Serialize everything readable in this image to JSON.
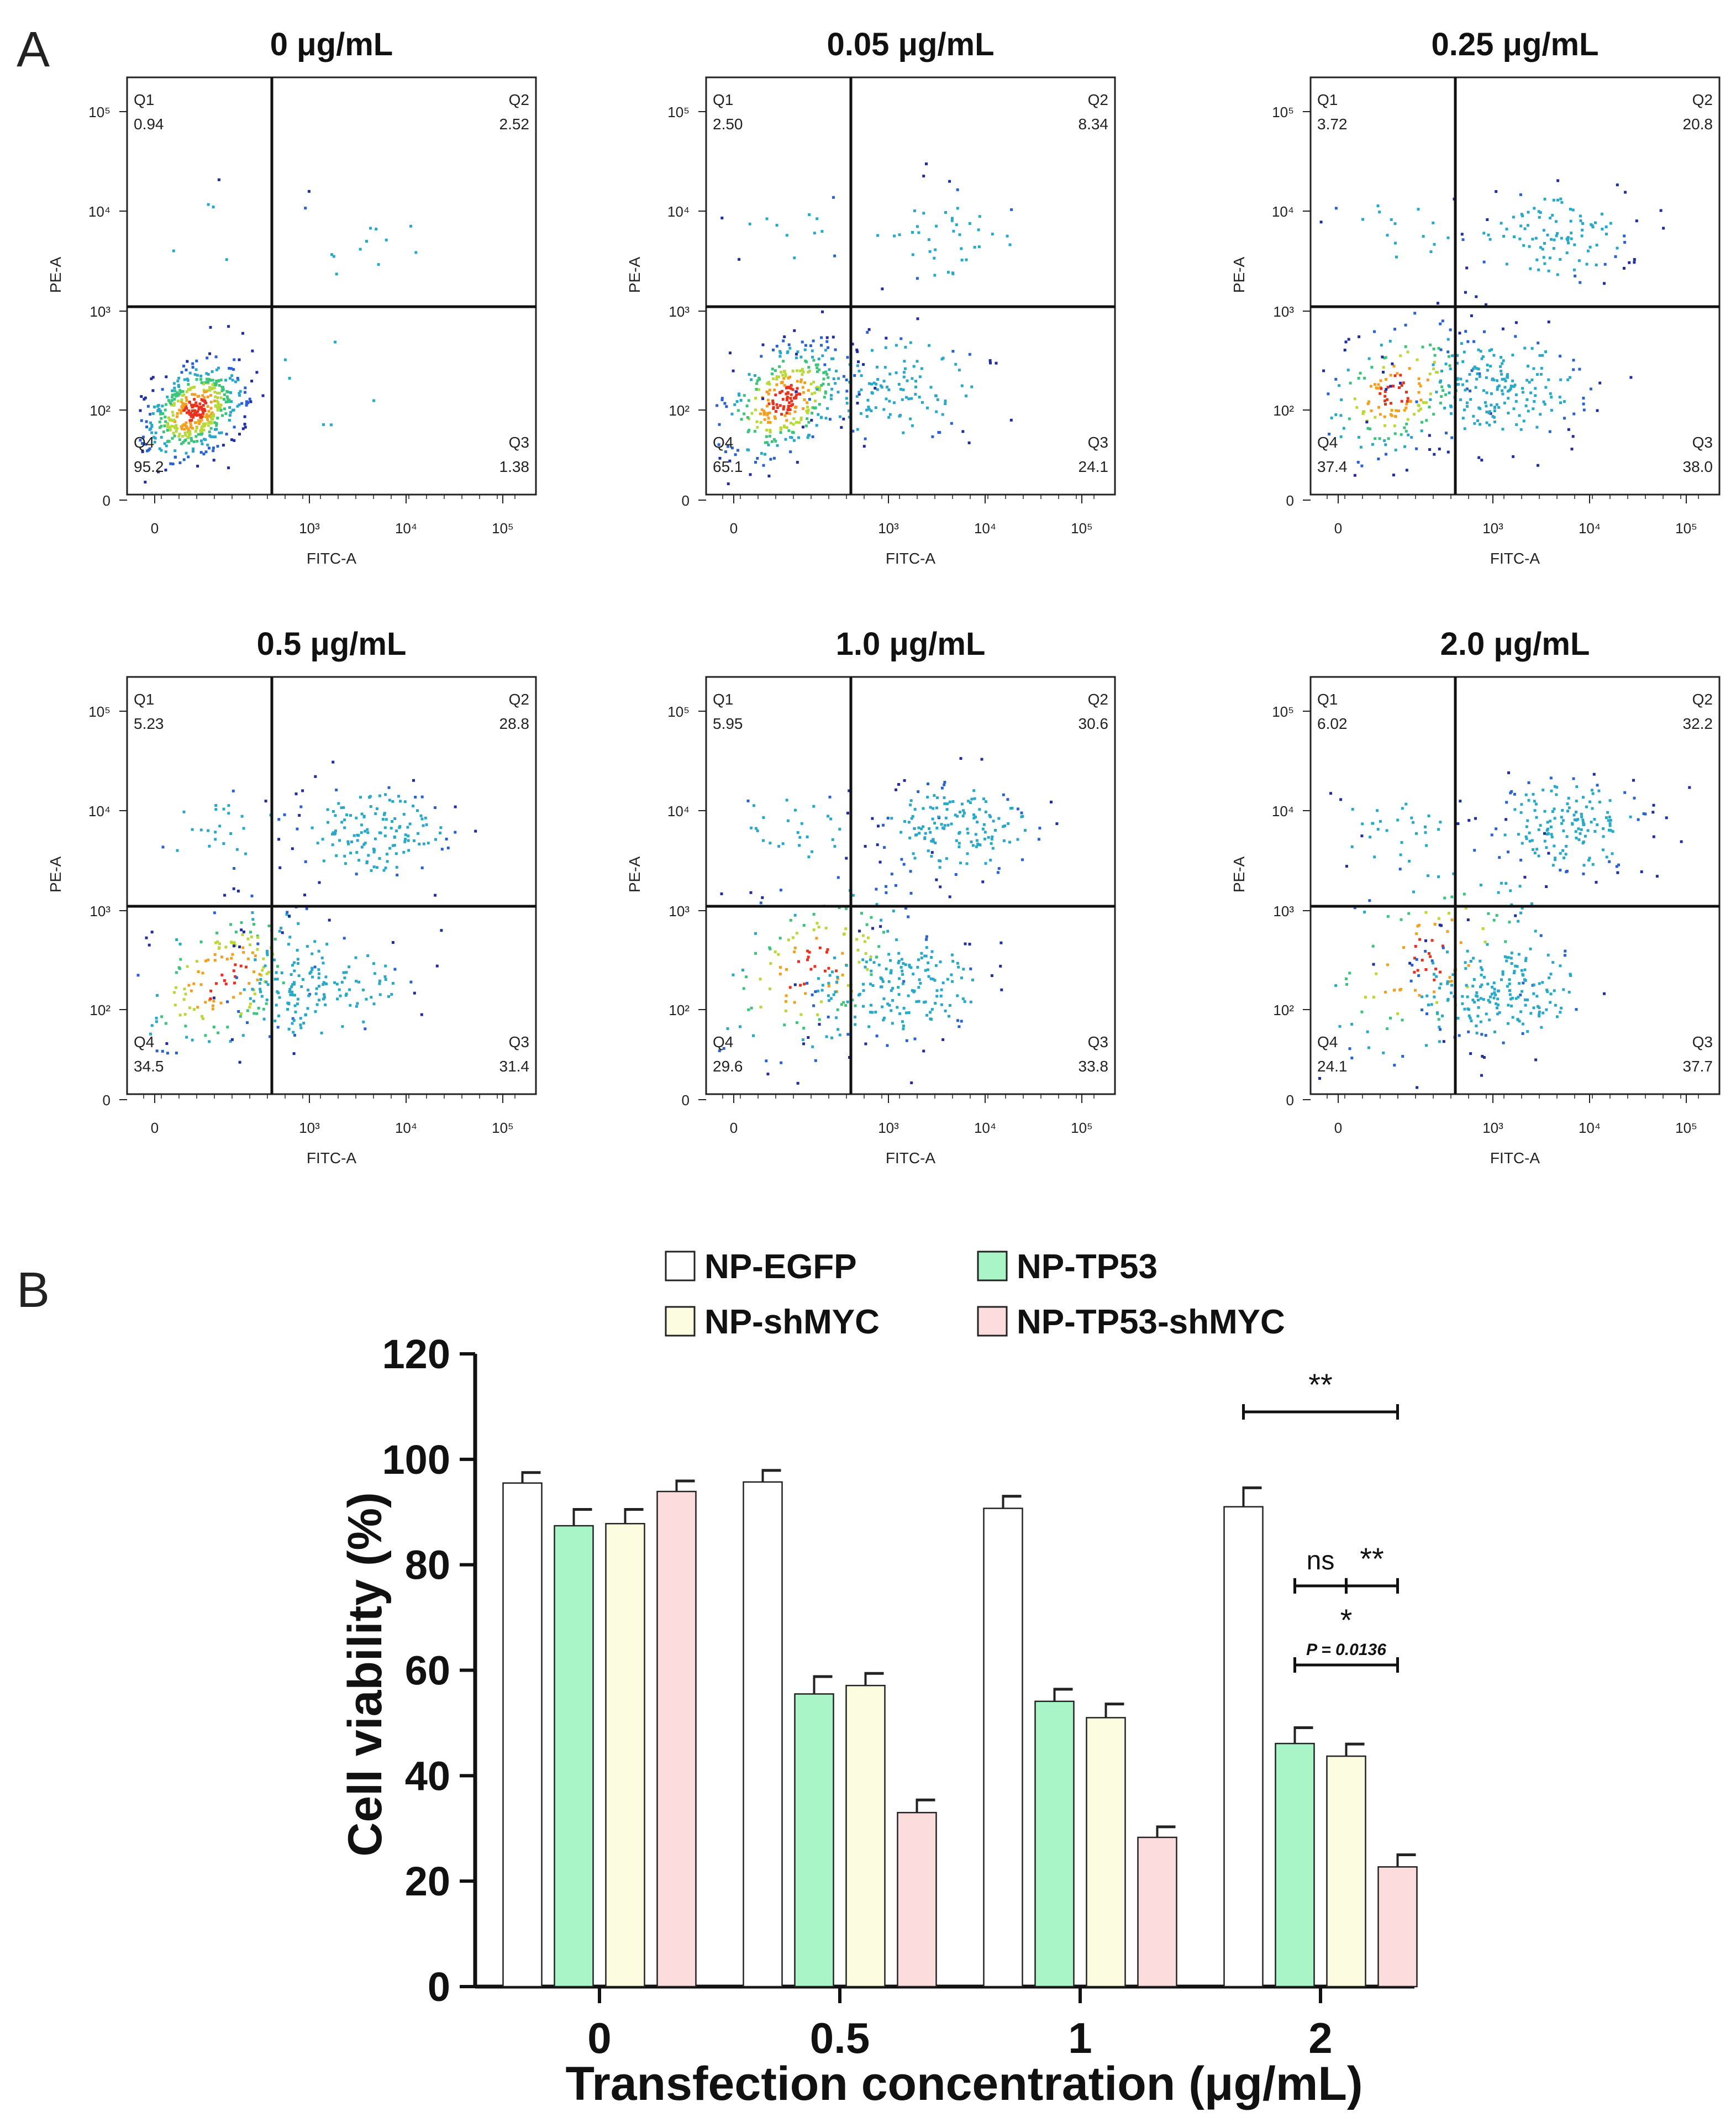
{
  "panel_labels": {
    "a": "A",
    "b": "B"
  },
  "colors": {
    "NP-EGFP": "#ffffff",
    "NP-TP53": "#aaf5c8",
    "NP-shMYC": "#fcfde0",
    "NP-TP53-shMYC": "#fcdcdc"
  },
  "chart_data": [
    {
      "type": "scatter",
      "title": "0 μg/mL",
      "xlabel": "FITC-A",
      "ylabel": "PE-A",
      "x_ticks": [
        "0",
        "10³",
        "10⁴",
        "10⁵"
      ],
      "y_ticks": [
        "0",
        "10²",
        "10³",
        "10⁴",
        "10⁵"
      ],
      "quadrants": [
        {
          "name": "Q1",
          "value": "0.94"
        },
        {
          "name": "Q2",
          "value": "2.52"
        },
        {
          "name": "Q3",
          "value": "1.38"
        },
        {
          "name": "Q4",
          "value": "95.2"
        }
      ]
    },
    {
      "type": "scatter",
      "title": "0.05 μg/mL",
      "xlabel": "FITC-A",
      "ylabel": "PE-A",
      "x_ticks": [
        "0",
        "10³",
        "10⁴",
        "10⁵"
      ],
      "y_ticks": [
        "0",
        "10²",
        "10³",
        "10⁴",
        "10⁵"
      ],
      "quadrants": [
        {
          "name": "Q1",
          "value": "2.50"
        },
        {
          "name": "Q2",
          "value": "8.34"
        },
        {
          "name": "Q3",
          "value": "24.1"
        },
        {
          "name": "Q4",
          "value": "65.1"
        }
      ]
    },
    {
      "type": "scatter",
      "title": "0.25 μg/mL",
      "xlabel": "FITC-A",
      "ylabel": "PE-A",
      "x_ticks": [
        "0",
        "10³",
        "10⁴",
        "10⁵"
      ],
      "y_ticks": [
        "0",
        "10²",
        "10³",
        "10⁴",
        "10⁵"
      ],
      "quadrants": [
        {
          "name": "Q1",
          "value": "3.72"
        },
        {
          "name": "Q2",
          "value": "20.8"
        },
        {
          "name": "Q3",
          "value": "38.0"
        },
        {
          "name": "Q4",
          "value": "37.4"
        }
      ]
    },
    {
      "type": "scatter",
      "title": "0.5 μg/mL",
      "xlabel": "FITC-A",
      "ylabel": "PE-A",
      "x_ticks": [
        "0",
        "10³",
        "10⁴",
        "10⁵"
      ],
      "y_ticks": [
        "0",
        "10²",
        "10³",
        "10⁴",
        "10⁵"
      ],
      "quadrants": [
        {
          "name": "Q1",
          "value": "5.23"
        },
        {
          "name": "Q2",
          "value": "28.8"
        },
        {
          "name": "Q3",
          "value": "31.4"
        },
        {
          "name": "Q4",
          "value": "34.5"
        }
      ]
    },
    {
      "type": "scatter",
      "title": "1.0 μg/mL",
      "xlabel": "FITC-A",
      "ylabel": "PE-A",
      "x_ticks": [
        "0",
        "10³",
        "10⁴",
        "10⁵"
      ],
      "y_ticks": [
        "0",
        "10²",
        "10³",
        "10⁴",
        "10⁵"
      ],
      "quadrants": [
        {
          "name": "Q1",
          "value": "5.95"
        },
        {
          "name": "Q2",
          "value": "30.6"
        },
        {
          "name": "Q3",
          "value": "33.8"
        },
        {
          "name": "Q4",
          "value": "29.6"
        }
      ]
    },
    {
      "type": "scatter",
      "title": "2.0 μg/mL",
      "xlabel": "FITC-A",
      "ylabel": "PE-A",
      "x_ticks": [
        "0",
        "10³",
        "10⁴",
        "10⁵"
      ],
      "y_ticks": [
        "0",
        "10²",
        "10³",
        "10⁴",
        "10⁵"
      ],
      "quadrants": [
        {
          "name": "Q1",
          "value": "6.02"
        },
        {
          "name": "Q2",
          "value": "32.2"
        },
        {
          "name": "Q3",
          "value": "37.7"
        },
        {
          "name": "Q4",
          "value": "24.1"
        }
      ]
    },
    {
      "type": "bar",
      "title": "",
      "xlabel": "Transfection concentration (μg/mL)",
      "ylabel": "Cell viability (%)",
      "categories": [
        "0",
        "0.5",
        "1",
        "2"
      ],
      "ylim": [
        0,
        120
      ],
      "y_ticks": [
        0,
        20,
        40,
        60,
        80,
        100,
        120
      ],
      "legend_position": "top",
      "series": [
        {
          "name": "NP-EGFP",
          "values": [
            95.5,
            95.7,
            90.7,
            91.0
          ],
          "errors": [
            2.0,
            2.2,
            2.3,
            3.6
          ]
        },
        {
          "name": "NP-TP53",
          "values": [
            87.4,
            55.5,
            54.1,
            46.1
          ],
          "errors": [
            3.1,
            3.3,
            2.3,
            3.0
          ]
        },
        {
          "name": "NP-shMYC",
          "values": [
            87.8,
            57.1,
            51.0,
            43.7
          ],
          "errors": [
            2.7,
            2.3,
            2.6,
            2.3
          ]
        },
        {
          "name": "NP-TP53-shMYC",
          "values": [
            93.9,
            33.0,
            28.3,
            22.7
          ],
          "errors": [
            2.0,
            2.4,
            2.0,
            2.3
          ]
        }
      ],
      "annotations": [
        {
          "text": "**",
          "from": "NP-EGFP",
          "to": "NP-TP53-shMYC",
          "category": "2",
          "level": 109
        },
        {
          "text": "ns",
          "from": "NP-TP53",
          "to": "NP-shMYC",
          "category": "2",
          "level": 76
        },
        {
          "text": "**",
          "from": "NP-shMYC",
          "to": "NP-TP53-shMYC",
          "category": "2",
          "level": 76
        },
        {
          "text": "*",
          "subtext": "P = 0.0136",
          "from": "NP-TP53",
          "to": "NP-TP53-shMYC",
          "category": "2",
          "level": 61
        }
      ]
    }
  ]
}
